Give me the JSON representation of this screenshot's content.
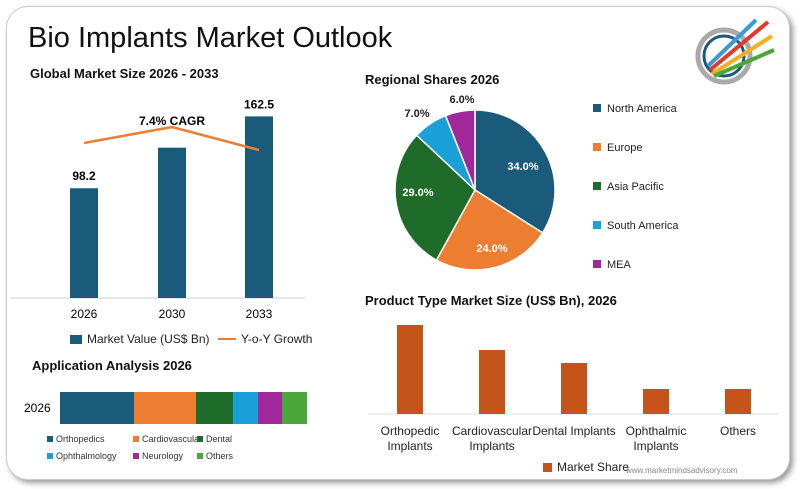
{
  "title": "Bio Implants Market Outlook",
  "website": "www.marketmindsadvisory.com",
  "colors": {
    "blue": "#1a5a7a",
    "orange": "#ed7d31",
    "green": "#1e6b2a",
    "cyan": "#1aa0d8",
    "purple": "#a0289a",
    "lime": "#4aa83a",
    "rust": "#c5541a"
  },
  "chart_data": [
    {
      "type": "bar",
      "title": "Global Market Size 2026 - 2033",
      "categories": [
        "2026",
        "2030",
        "2033"
      ],
      "series": [
        {
          "name": "Market Value (US$ Bn)",
          "values": [
            98.2,
            134.5,
            162.5
          ],
          "labels": [
            "98.2",
            "",
            "162.5"
          ]
        },
        {
          "name": "Y-o-Y Growth",
          "type": "line",
          "values": [
            7.9,
            8.5,
            7.7
          ]
        }
      ],
      "annotation": "7.4% CAGR",
      "ylim": [
        0,
        170
      ]
    },
    {
      "type": "pie",
      "title": "Regional Shares 2026",
      "categories": [
        "North America",
        "Europe",
        "Asia Pacific",
        "South America",
        "MEA"
      ],
      "values": [
        34.0,
        24.0,
        29.0,
        7.0,
        6.0
      ],
      "labels": [
        "34.0%",
        "24.0%",
        "29.0%",
        "7.0%",
        "6.0%"
      ]
    },
    {
      "type": "bar",
      "title": "Application Analysis 2026",
      "stacked": true,
      "categories": [
        "2026"
      ],
      "series": [
        {
          "name": "Orthopedics",
          "values": [
            30
          ]
        },
        {
          "name": "Cardiovascular",
          "values": [
            25
          ]
        },
        {
          "name": "Dental",
          "values": [
            15
          ]
        },
        {
          "name": "Ophthalmology",
          "values": [
            10
          ]
        },
        {
          "name": "Neurology",
          "values": [
            10
          ]
        },
        {
          "name": "Others",
          "values": [
            10
          ]
        }
      ]
    },
    {
      "type": "bar",
      "title": "Product Type Market Size (US$ Bn), 2026",
      "categories": [
        "Orthopedic Implants",
        "Cardiovascular Implants",
        "Dental Implants",
        "Ophthalmic Implants",
        "Others"
      ],
      "series": [
        {
          "name": "Market Share",
          "values": [
            89,
            64,
            51,
            25,
            25
          ]
        }
      ],
      "ylim": [
        0,
        100
      ]
    }
  ]
}
